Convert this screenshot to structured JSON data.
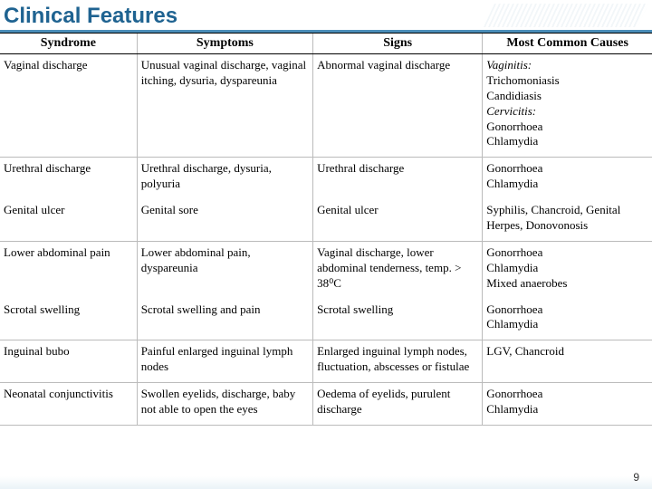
{
  "title": "Clinical Features",
  "pageNumber": "9",
  "headers": {
    "syndrome": "Syndrome",
    "symptoms": "Symptoms",
    "signs": "Signs",
    "causes": "Most Common Causes"
  },
  "rows": {
    "r1": {
      "syndrome": "Vaginal discharge",
      "symptoms": "Unusual vaginal discharge, vaginal itching, dysuria, dyspareunia",
      "signs": "Abnormal vaginal discharge",
      "causesLabel1": "Vaginitis:",
      "causesList1": "Trichomoniasis\nCandidiasis",
      "causesLabel2": "Cervicitis:",
      "causesList2": "Gonorrhoea\nChlamydia"
    },
    "r2": {
      "syndrome": "Urethral discharge",
      "symptoms": "Urethral discharge, dysuria, polyuria",
      "signs": "Urethral discharge",
      "causes": "Gonorrhoea\nChlamydia"
    },
    "r3": {
      "syndrome": "Genital ulcer",
      "symptoms": "Genital sore",
      "signs": "Genital ulcer",
      "causes": "Syphilis, Chancroid, Genital Herpes, Donovonosis"
    },
    "r4": {
      "syndrome": "Lower abdominal pain",
      "symptoms": "Lower abdominal pain, dyspareunia",
      "signs": "Vaginal discharge, lower abdominal tenderness, temp. > 38⁰C",
      "causes": "Gonorrhoea\nChlamydia\nMixed anaerobes"
    },
    "r5": {
      "syndrome": "Scrotal swelling",
      "symptoms": "Scrotal swelling and pain",
      "signs": "Scrotal swelling",
      "causes": "Gonorrhoea\nChlamydia"
    },
    "r6": {
      "syndrome": "Inguinal bubo",
      "symptoms": "Painful enlarged inguinal lymph nodes",
      "signs": "Enlarged inguinal lymph nodes, fluctuation, abscesses or fistulae",
      "causes": "LGV, Chancroid"
    },
    "r7": {
      "syndrome": "Neonatal conjunctivitis",
      "symptoms": "Swollen eyelids, discharge, baby not able to open the eyes",
      "signs": "Oedema of eyelids, purulent discharge",
      "causes": "Gonorrhoea\nChlamydia"
    }
  }
}
